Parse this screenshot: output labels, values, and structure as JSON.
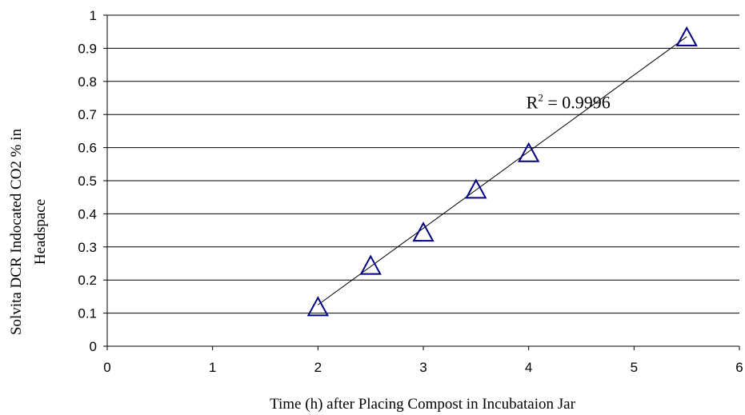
{
  "chart_data": {
    "type": "scatter",
    "title": "",
    "xlabel": "Time (h) after Placing Compost in Incubataion Jar",
    "ylabel_line1": "Solvita DCR Indocated CO2 % in",
    "ylabel_line2": "Headspace",
    "xlim": [
      0,
      6
    ],
    "ylim": [
      0,
      1
    ],
    "xticks": [
      0,
      1,
      2,
      3,
      4,
      5,
      6
    ],
    "yticks": [
      0,
      0.1,
      0.2,
      0.3,
      0.4,
      0.5,
      0.6,
      0.7,
      0.8,
      0.9,
      1
    ],
    "xtick_labels": [
      "0",
      "1",
      "2",
      "3",
      "4",
      "5",
      "6"
    ],
    "ytick_labels": [
      "0",
      "0.1",
      "0.2",
      "0.3",
      "0.4",
      "0.5",
      "0.6",
      "0.7",
      "0.8",
      "0.9",
      "1"
    ],
    "grid": "horizontal",
    "marker": "open-triangle",
    "marker_color": "#000080",
    "series": [
      {
        "x": [
          2,
          2.5,
          3,
          3.5,
          4,
          5.5
        ],
        "y": [
          0.12,
          0.245,
          0.345,
          0.475,
          0.585,
          0.935
        ]
      }
    ],
    "trendline": {
      "type": "linear",
      "x": [
        2,
        5.5
      ],
      "y": [
        0.125,
        0.935
      ]
    },
    "annotation": {
      "base": "R",
      "sup": "2",
      "text": " = 0.9996",
      "x": 4.0,
      "y": 0.735
    }
  }
}
